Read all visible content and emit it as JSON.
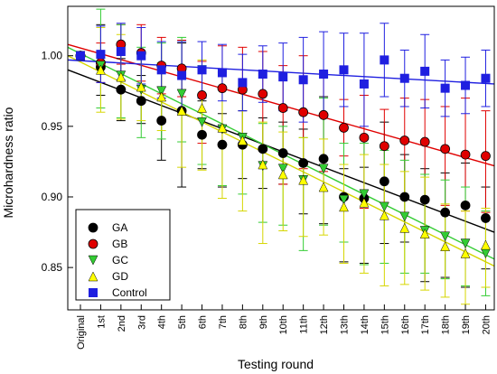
{
  "chart_data": {
    "type": "scatter",
    "xlabel": "Testing round",
    "ylabel": "Microhardness ratio",
    "categories": [
      "Original",
      "1st",
      "2nd",
      "3rd",
      "4th",
      "5th",
      "6th",
      "7th",
      "8th",
      "9th",
      "10th",
      "11th",
      "12th",
      "13th",
      "14th",
      "15th",
      "16th",
      "17th",
      "18th",
      "19th",
      "20th"
    ],
    "ylim": [
      0.82,
      1.035
    ],
    "yticks": [
      0.85,
      0.9,
      0.95,
      1.0
    ],
    "ytick_labels": [
      "0.85",
      "0.90",
      "0.95",
      "1.00"
    ],
    "grid": false,
    "legend_position": "bottom-left",
    "series": [
      {
        "name": "GA",
        "marker": "circle",
        "color": "#000000",
        "values": [
          1.0,
          0.992,
          0.976,
          0.968,
          0.954,
          0.961,
          0.944,
          0.937,
          0.937,
          0.934,
          0.931,
          0.924,
          0.927,
          0.9,
          0.899,
          0.911,
          0.9,
          0.898,
          0.889,
          0.894,
          0.885
        ],
        "err_hi": [
          0,
          0.03,
          0.022,
          0.018,
          0.024,
          0.048,
          0.024,
          0.022,
          0.024,
          0.022,
          0.022,
          0.024,
          0.044,
          0.02,
          0.022,
          0.042,
          0.03,
          0.022,
          0.028,
          0.03,
          0.022
        ],
        "err_lo": [
          0,
          0.02,
          0.022,
          0.016,
          0.028,
          0.054,
          0.024,
          0.03,
          0.024,
          0.028,
          0.022,
          0.036,
          0.046,
          0.046,
          0.046,
          0.044,
          0.032,
          0.058,
          0.046,
          0.058,
          0.036
        ],
        "trend": [
          0.99,
          0.875
        ]
      },
      {
        "name": "GB",
        "marker": "circle",
        "color": "#e00000",
        "values": [
          1.0,
          0.995,
          1.008,
          1.002,
          0.993,
          0.991,
          0.972,
          0.977,
          0.976,
          0.973,
          0.963,
          0.96,
          0.958,
          0.949,
          0.942,
          0.936,
          0.94,
          0.939,
          0.934,
          0.93,
          0.929
        ],
        "err_hi": [
          0,
          0.014,
          0.014,
          0.02,
          0.02,
          0.02,
          0.024,
          0.03,
          0.03,
          0.03,
          0.03,
          0.04,
          0.03,
          0.02,
          0.03,
          0.026,
          0.03,
          0.03,
          0.03,
          0.04,
          0.032
        ],
        "err_lo": [
          0,
          0.014,
          0.014,
          0.02,
          0.02,
          0.02,
          0.034,
          0.04,
          0.04,
          0.04,
          0.054,
          0.04,
          0.04,
          0.02,
          0.05,
          0.04,
          0.04,
          0.04,
          0.04,
          0.04,
          0.04
        ],
        "trend": [
          1.008,
          0.922
        ]
      },
      {
        "name": "GC",
        "marker": "triangle-down",
        "color": "#33cc33",
        "values": [
          1.0,
          0.993,
          0.986,
          0.976,
          0.975,
          0.973,
          0.953,
          0.948,
          0.942,
          0.922,
          0.92,
          0.912,
          0.92,
          0.898,
          0.902,
          0.893,
          0.886,
          0.876,
          0.872,
          0.867,
          0.86
        ],
        "err_hi": [
          0,
          0.04,
          0.036,
          0.03,
          0.034,
          0.04,
          0.04,
          0.04,
          0.034,
          0.03,
          0.03,
          0.03,
          0.05,
          0.04,
          0.036,
          0.04,
          0.04,
          0.04,
          0.04,
          0.04,
          0.03
        ],
        "err_lo": [
          0,
          0.03,
          0.03,
          0.034,
          0.034,
          0.034,
          0.03,
          0.04,
          0.04,
          0.04,
          0.04,
          0.05,
          0.04,
          0.03,
          0.05,
          0.04,
          0.04,
          0.03,
          0.03,
          0.03,
          0.03
        ],
        "trend": [
          1.006,
          0.856
        ]
      },
      {
        "name": "GD",
        "marker": "triangle-up",
        "color": "#ffff00",
        "values": [
          1.0,
          0.99,
          0.985,
          0.978,
          0.971,
          0.961,
          0.963,
          0.949,
          0.94,
          0.923,
          0.916,
          0.912,
          0.907,
          0.893,
          0.896,
          0.887,
          0.878,
          0.874,
          0.865,
          0.86,
          0.866
        ],
        "err_hi": [
          0,
          0.03,
          0.03,
          0.024,
          0.024,
          0.03,
          0.034,
          0.04,
          0.034,
          0.03,
          0.03,
          0.03,
          0.034,
          0.03,
          0.034,
          0.036,
          0.04,
          0.04,
          0.03,
          0.03,
          0.026
        ],
        "err_lo": [
          0,
          0.03,
          0.03,
          0.024,
          0.024,
          0.04,
          0.044,
          0.05,
          0.05,
          0.056,
          0.04,
          0.04,
          0.034,
          0.04,
          0.05,
          0.05,
          0.04,
          0.04,
          0.036,
          0.036,
          0.03
        ],
        "trend": [
          1.0,
          0.851
        ]
      },
      {
        "name": "Control",
        "marker": "square",
        "color": "#1f1fe0",
        "values": [
          1.0,
          1.001,
          1.003,
          1.0,
          0.99,
          0.986,
          0.99,
          0.988,
          0.981,
          0.987,
          0.985,
          0.983,
          0.987,
          0.99,
          0.98,
          0.997,
          0.984,
          0.989,
          0.977,
          0.979,
          0.984
        ],
        "err_hi": [
          0,
          0.02,
          0.02,
          0.02,
          0.02,
          0.024,
          0.02,
          0.02,
          0.02,
          0.02,
          0.024,
          0.03,
          0.03,
          0.026,
          0.036,
          0.026,
          0.02,
          0.026,
          0.02,
          0.02,
          0.02
        ],
        "err_lo": [
          0,
          0.02,
          0.02,
          0.02,
          0.02,
          0.024,
          0.02,
          0.02,
          0.02,
          0.02,
          0.024,
          0.03,
          0.03,
          0.026,
          0.03,
          0.026,
          0.02,
          0.026,
          0.02,
          0.02,
          0.02
        ],
        "trend": [
          0.997,
          0.98
        ]
      }
    ]
  }
}
